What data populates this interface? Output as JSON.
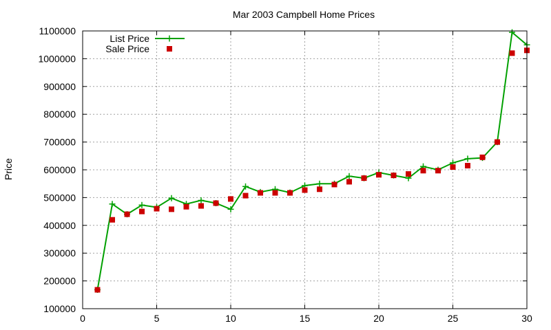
{
  "chart_data": {
    "type": "line",
    "title": "Mar 2003 Campbell Home Prices",
    "xlabel": "",
    "ylabel": "Price",
    "xlim": [
      0,
      30
    ],
    "ylim": [
      100000,
      1100000
    ],
    "x_ticks": [
      0,
      5,
      10,
      15,
      20,
      25,
      30
    ],
    "y_ticks": [
      100000,
      200000,
      300000,
      400000,
      500000,
      600000,
      700000,
      800000,
      900000,
      1000000,
      1100000
    ],
    "grid": true,
    "legend_position": "top-left",
    "series": [
      {
        "name": "List Price",
        "style": "line+cross",
        "color": "#00a000",
        "x": [
          1,
          2,
          3,
          4,
          5,
          6,
          7,
          8,
          9,
          10,
          11,
          12,
          13,
          14,
          15,
          16,
          17,
          18,
          19,
          20,
          21,
          22,
          23,
          24,
          25,
          26,
          27,
          28,
          29,
          30
        ],
        "y": [
          168000,
          477000,
          440000,
          473000,
          465000,
          498000,
          477000,
          490000,
          480000,
          458000,
          540000,
          520000,
          530000,
          518000,
          543000,
          550000,
          550000,
          577000,
          570000,
          590000,
          580000,
          570000,
          612000,
          600000,
          625000,
          640000,
          643000,
          700000,
          1095000,
          1050000
        ]
      },
      {
        "name": "Sale Price",
        "style": "square-points",
        "color": "#cc0000",
        "x": [
          1,
          2,
          3,
          4,
          5,
          6,
          7,
          8,
          9,
          10,
          11,
          12,
          13,
          14,
          15,
          16,
          17,
          18,
          19,
          20,
          21,
          22,
          23,
          24,
          25,
          26,
          27,
          28,
          29,
          30
        ],
        "y": [
          168000,
          420000,
          440000,
          450000,
          460000,
          458000,
          467000,
          470000,
          480000,
          495000,
          507000,
          517000,
          517000,
          517000,
          527000,
          530000,
          547000,
          557000,
          570000,
          582000,
          580000,
          585000,
          597000,
          597000,
          610000,
          615000,
          645000,
          700000,
          1020000,
          1030000
        ]
      }
    ]
  }
}
